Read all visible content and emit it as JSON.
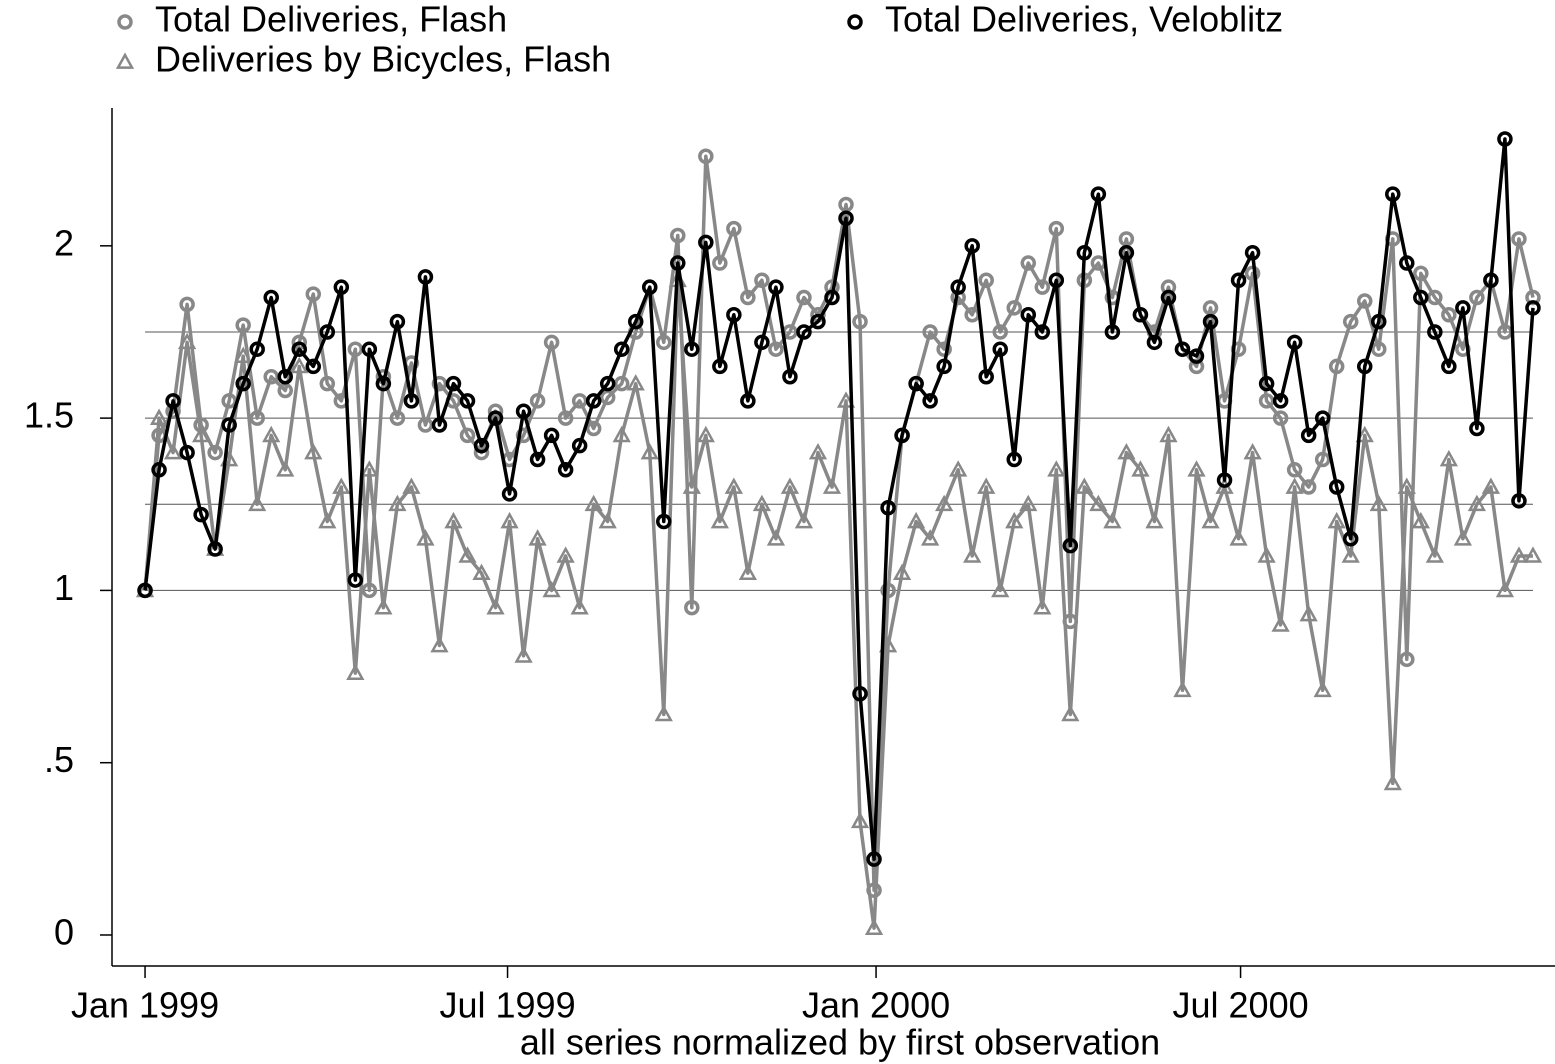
{
  "chart_data": {
    "type": "line",
    "x_label": "all series normalized by first observation",
    "x": [
      0,
      7,
      14,
      21,
      28,
      35,
      42,
      49,
      56,
      63,
      70,
      77,
      84,
      91,
      98,
      105,
      112,
      119,
      126,
      133,
      140,
      147,
      154,
      161,
      168,
      175,
      182,
      189,
      196,
      203,
      210,
      217,
      224,
      231,
      238,
      245,
      252,
      259,
      266,
      273,
      280,
      287,
      294,
      301,
      308,
      315,
      322,
      329,
      336,
      343,
      350,
      357,
      364,
      371,
      378,
      385,
      392,
      399,
      406,
      413,
      420,
      427,
      434,
      441,
      448,
      455,
      462,
      469,
      476,
      483,
      490,
      497,
      504,
      511,
      518,
      525,
      532,
      539,
      546,
      553,
      560,
      567,
      574,
      581,
      588,
      595,
      602,
      609,
      616,
      623,
      630,
      637,
      644,
      651,
      658,
      665,
      672,
      679,
      686,
      693
    ],
    "xlim": [
      -16.5,
      704
    ],
    "xticks": [
      {
        "value": 0,
        "label": "Jan 1999"
      },
      {
        "value": 181,
        "label": "Jul 1999"
      },
      {
        "value": 365,
        "label": "Jan 2000"
      },
      {
        "value": 547,
        "label": "Jul 2000"
      }
    ],
    "ylim": [
      -0.09,
      2.4
    ],
    "yticks": [
      0,
      {
        "value": 0.5,
        "label": ".5"
      },
      1,
      1.5,
      2
    ],
    "reference_lines": [
      1,
      1.25,
      1.5,
      1.75
    ],
    "legend": "top",
    "series": [
      {
        "name": "Total Deliveries, Flash",
        "color": "#888888",
        "marker": "circle",
        "values": [
          1.0,
          1.45,
          1.52,
          1.83,
          1.48,
          1.4,
          1.55,
          1.77,
          1.5,
          1.62,
          1.58,
          1.72,
          1.86,
          1.6,
          1.55,
          1.7,
          1.0,
          1.62,
          1.5,
          1.66,
          1.48,
          1.6,
          1.55,
          1.45,
          1.4,
          1.52,
          1.38,
          1.45,
          1.55,
          1.72,
          1.5,
          1.55,
          1.47,
          1.56,
          1.6,
          1.75,
          1.88,
          1.72,
          2.03,
          0.95,
          2.26,
          1.95,
          2.05,
          1.85,
          1.9,
          1.7,
          1.75,
          1.85,
          1.8,
          1.88,
          2.12,
          1.78,
          0.13,
          1.0,
          1.45,
          1.6,
          1.75,
          1.7,
          1.85,
          1.8,
          1.9,
          1.75,
          1.82,
          1.95,
          1.88,
          2.05,
          0.91,
          1.9,
          1.95,
          1.85,
          2.02,
          1.8,
          1.75,
          1.88,
          1.7,
          1.65,
          1.82,
          1.55,
          1.7,
          1.92,
          1.55,
          1.5,
          1.35,
          1.3,
          1.38,
          1.65,
          1.78,
          1.84,
          1.7,
          2.02,
          0.8,
          1.92,
          1.85,
          1.8,
          1.7,
          1.85,
          1.9,
          1.75,
          2.02,
          1.85
        ]
      },
      {
        "name": "Total Deliveries, Veloblitz",
        "color": "#000000",
        "marker": "circle",
        "values": [
          1.0,
          1.35,
          1.55,
          1.4,
          1.22,
          1.12,
          1.48,
          1.6,
          1.7,
          1.85,
          1.62,
          1.7,
          1.65,
          1.75,
          1.88,
          1.03,
          1.7,
          1.6,
          1.78,
          1.55,
          1.91,
          1.48,
          1.6,
          1.55,
          1.42,
          1.5,
          1.28,
          1.52,
          1.38,
          1.45,
          1.35,
          1.42,
          1.55,
          1.6,
          1.7,
          1.78,
          1.88,
          1.2,
          1.95,
          1.7,
          2.01,
          1.65,
          1.8,
          1.55,
          1.72,
          1.88,
          1.62,
          1.75,
          1.78,
          1.85,
          2.08,
          0.7,
          0.22,
          1.24,
          1.45,
          1.6,
          1.55,
          1.65,
          1.88,
          2.0,
          1.62,
          1.7,
          1.38,
          1.8,
          1.75,
          1.9,
          1.13,
          1.98,
          2.15,
          1.75,
          1.98,
          1.8,
          1.72,
          1.85,
          1.7,
          1.68,
          1.78,
          1.32,
          1.9,
          1.98,
          1.6,
          1.55,
          1.72,
          1.45,
          1.5,
          1.3,
          1.15,
          1.65,
          1.78,
          2.15,
          1.95,
          1.85,
          1.75,
          1.65,
          1.82,
          1.47,
          1.9,
          2.31,
          1.26,
          1.82
        ]
      },
      {
        "name": "Deliveries by Bicycles, Flash",
        "color": "#888888",
        "marker": "triangle",
        "values": [
          1.0,
          1.5,
          1.4,
          1.72,
          1.45,
          1.12,
          1.38,
          1.68,
          1.25,
          1.45,
          1.35,
          1.65,
          1.4,
          1.2,
          1.3,
          0.76,
          1.35,
          0.95,
          1.25,
          1.3,
          1.15,
          0.84,
          1.2,
          1.1,
          1.05,
          0.95,
          1.2,
          0.81,
          1.15,
          1.0,
          1.1,
          0.95,
          1.25,
          1.2,
          1.45,
          1.6,
          1.4,
          0.64,
          1.9,
          1.3,
          1.45,
          1.2,
          1.3,
          1.05,
          1.25,
          1.15,
          1.3,
          1.2,
          1.4,
          1.3,
          1.55,
          0.33,
          0.02,
          0.84,
          1.05,
          1.2,
          1.15,
          1.25,
          1.35,
          1.1,
          1.3,
          1.0,
          1.2,
          1.25,
          0.95,
          1.35,
          0.64,
          1.3,
          1.25,
          1.2,
          1.4,
          1.35,
          1.2,
          1.45,
          0.71,
          1.35,
          1.2,
          1.3,
          1.15,
          1.4,
          1.1,
          0.9,
          1.3,
          0.93,
          0.71,
          1.2,
          1.1,
          1.45,
          1.25,
          0.44,
          1.3,
          1.2,
          1.1,
          1.38,
          1.15,
          1.25,
          1.3,
          1.0,
          1.1,
          1.1
        ]
      }
    ]
  }
}
